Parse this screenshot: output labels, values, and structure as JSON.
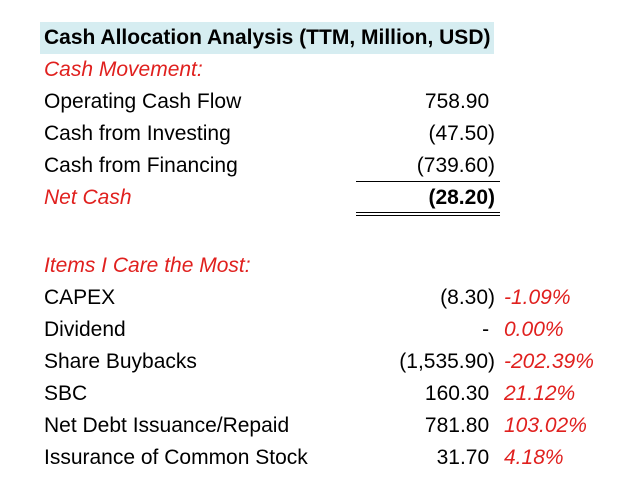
{
  "title": "Cash Allocation Analysis (TTM, Million, USD)",
  "cash_movement": {
    "heading": "Cash Movement:",
    "rows": [
      {
        "label": "Operating Cash Flow",
        "value": "758.90 "
      },
      {
        "label": "Cash from Investing",
        "value": "(47.50)"
      },
      {
        "label": "Cash from Financing",
        "value": "(739.60)"
      }
    ],
    "net": {
      "label": "Net Cash",
      "value": "(28.20)"
    }
  },
  "items": {
    "heading": "Items I Care the Most:",
    "rows": [
      {
        "label": "CAPEX",
        "value": "(8.30)",
        "pct": "-1.09%"
      },
      {
        "label": "Dividend",
        "value": "- ",
        "pct": "0.00%"
      },
      {
        "label": "Share Buybacks",
        "value": "(1,535.90)",
        "pct": "-202.39%"
      },
      {
        "label": "SBC",
        "value": "160.30 ",
        "pct": "21.12%"
      },
      {
        "label": "Net Debt Issuance/Repaid",
        "value": "781.80 ",
        "pct": "103.02%"
      },
      {
        "label": "Issurance of Common Stock",
        "value": "31.70 ",
        "pct": "4.18%"
      }
    ]
  },
  "colors": {
    "title_bg": "#d6edf1",
    "accent_red": "#e0201e",
    "text": "#000000"
  }
}
